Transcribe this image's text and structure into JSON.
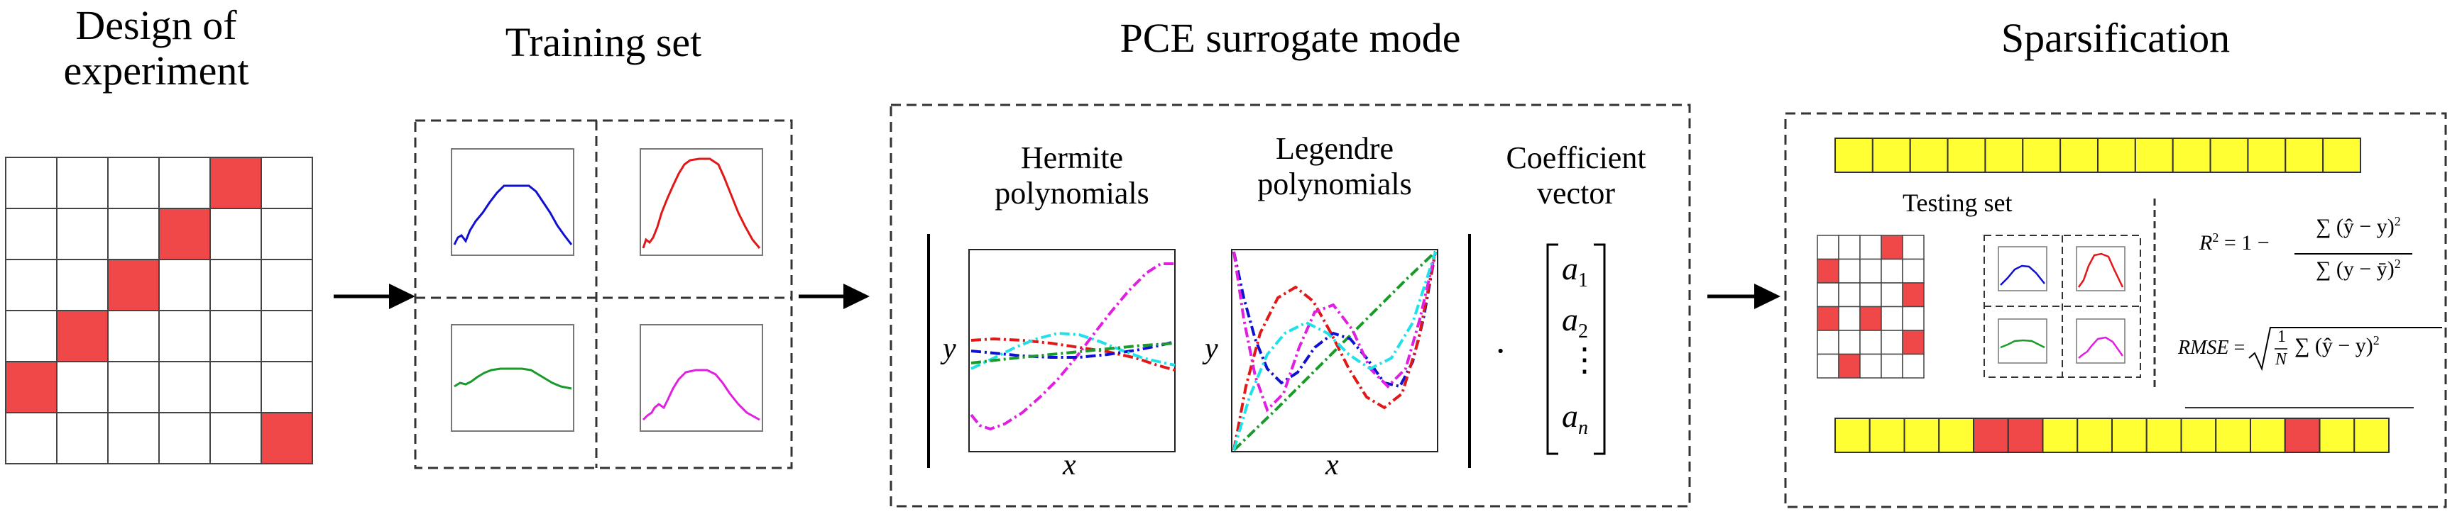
{
  "stages": {
    "doe": {
      "title_line1": "Design of",
      "title_line2": "experiment"
    },
    "training": {
      "title": "Training set"
    },
    "pce": {
      "title": "PCE surrogate mode",
      "hermite": {
        "line1": "Hermite",
        "line2": "polynomials"
      },
      "legendre": {
        "line1": "Legendre",
        "line2": "polynomials"
      },
      "coefficient": {
        "line1": "Coefficient",
        "line2": "vector"
      },
      "axis_y": "y",
      "axis_x": "x",
      "dot": "·",
      "vector": [
        "a",
        "a",
        "⋮",
        "a"
      ],
      "vector_subscripts": [
        "1",
        "2",
        "",
        "n"
      ]
    },
    "sparsification": {
      "title": "Sparsification",
      "testing_set": "Testing set",
      "r2_lhs": "R",
      "r2_exp": "2",
      "r2_eq": "= 1 −",
      "r2_num": "∑ (ŷ − y)",
      "r2_den": "∑ (y − ȳ)",
      "rmse_lhs": "RMSE",
      "rmse_eq": "=",
      "rmse_frac_num": "1",
      "rmse_frac_den": "N",
      "rmse_sum": "∑ (ŷ − y)"
    }
  },
  "doe_grid": {
    "rows": 6,
    "cols": 6,
    "highlighted": [
      [
        0,
        4
      ],
      [
        1,
        3
      ],
      [
        2,
        2
      ],
      [
        3,
        1
      ],
      [
        4,
        0
      ],
      [
        5,
        5
      ]
    ]
  },
  "testing_grid": {
    "rows": 6,
    "cols": 5,
    "highlighted": [
      [
        0,
        3
      ],
      [
        1,
        0
      ],
      [
        2,
        4
      ],
      [
        3,
        0
      ],
      [
        3,
        2
      ],
      [
        4,
        4
      ],
      [
        5,
        1
      ]
    ]
  },
  "coef_bar_top": {
    "count": 14,
    "highlighted": []
  },
  "coef_bar_bottom": {
    "count": 16,
    "highlighted": [
      4,
      5,
      13
    ]
  },
  "curve_colors": {
    "blue": "#1010d0",
    "red": "#e01818",
    "green": "#1a9a2a",
    "magenta": "#e020e0",
    "cyan": "#20e0e8"
  },
  "colors": {
    "cell_red": "#f04848",
    "cell_yellow": "#ffff33",
    "border": "#444444"
  }
}
